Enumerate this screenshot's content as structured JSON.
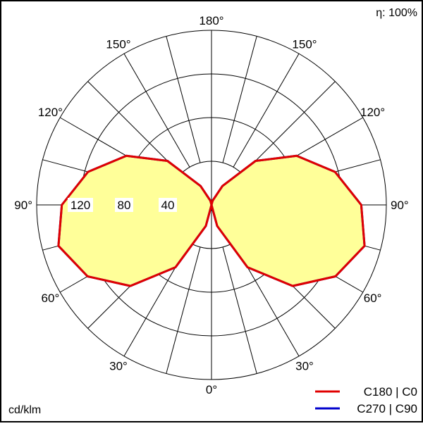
{
  "efficiency_label": "η: 100%",
  "unit_label": "cd/klm",
  "colors": {
    "background": "#ffffff",
    "frame": "#000000",
    "grid": "#000000",
    "fill": "#ffff99",
    "c0_c180": "#e00000",
    "c90_c270": "#0000cc"
  },
  "chart_data": {
    "type": "polar-photometric",
    "angle_unit": "degrees",
    "radial_max": 160,
    "radial_rings": [
      40,
      80,
      120,
      160
    ],
    "radial_tick_labels": [
      "40",
      "80",
      "120"
    ],
    "angle_grid_step": 15,
    "angle_labels": [
      {
        "text": "180°",
        "angle": 180,
        "side": "center"
      },
      {
        "text": "150°",
        "angle": 150,
        "side": "left"
      },
      {
        "text": "150°",
        "angle": 150,
        "side": "right"
      },
      {
        "text": "120°",
        "angle": 120,
        "side": "left"
      },
      {
        "text": "120°",
        "angle": 120,
        "side": "right"
      },
      {
        "text": "90°",
        "angle": 90,
        "side": "left"
      },
      {
        "text": "90°",
        "angle": 90,
        "side": "right"
      },
      {
        "text": "60°",
        "angle": 60,
        "side": "left"
      },
      {
        "text": "60°",
        "angle": 60,
        "side": "right"
      },
      {
        "text": "30°",
        "angle": 30,
        "side": "left"
      },
      {
        "text": "30°",
        "angle": 30,
        "side": "right"
      },
      {
        "text": "0°",
        "angle": 0,
        "side": "center"
      }
    ],
    "series": [
      {
        "name": "C180 | C0",
        "color": "#e00000",
        "symmetric": true,
        "angles": [
          0,
          15,
          30,
          45,
          60,
          75,
          90,
          105,
          120,
          135,
          150,
          165,
          180
        ],
        "values": [
          0,
          20,
          66,
          105,
          131,
          145,
          137,
          117,
          90,
          57,
          20,
          4,
          0
        ]
      },
      {
        "name": "C270 | C90",
        "color": "#0000cc",
        "symmetric": true,
        "angles": [
          0,
          15,
          30,
          45,
          60,
          75,
          90,
          105,
          120,
          135,
          150,
          165,
          180
        ],
        "values": [
          0,
          20,
          66,
          105,
          131,
          145,
          137,
          117,
          90,
          57,
          20,
          4,
          0
        ]
      }
    ],
    "legend_position": "bottom-right"
  }
}
